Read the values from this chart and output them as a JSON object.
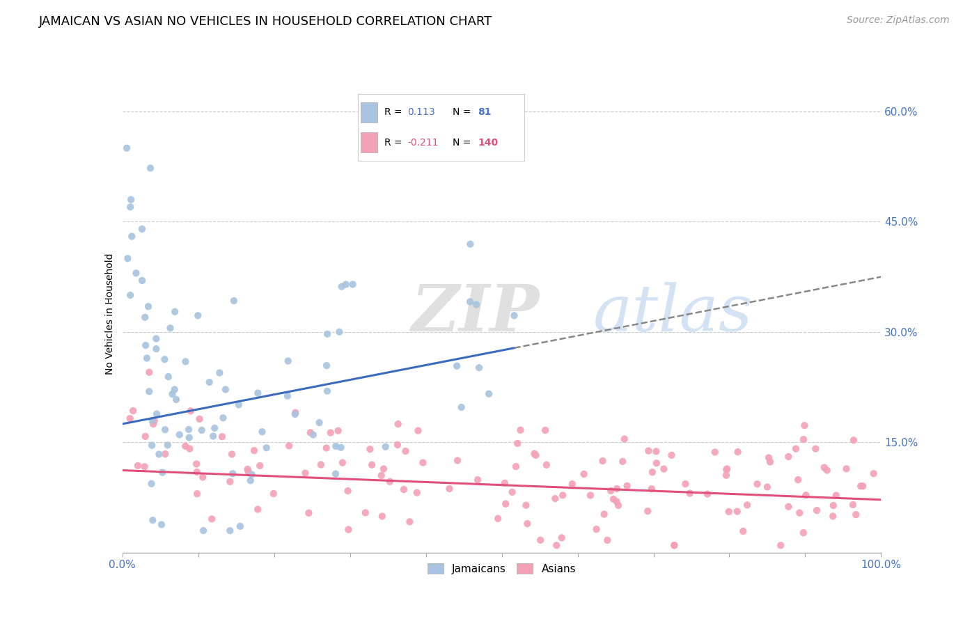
{
  "title": "JAMAICAN VS ASIAN NO VEHICLES IN HOUSEHOLD CORRELATION CHART",
  "source": "Source: ZipAtlas.com",
  "ylabel": "No Vehicles in Household",
  "xlim": [
    0.0,
    1.0
  ],
  "ylim": [
    0.0,
    0.65
  ],
  "y_ticks": [
    0.0,
    0.15,
    0.3,
    0.45,
    0.6
  ],
  "y_tick_labels": [
    "",
    "15.0%",
    "30.0%",
    "45.0%",
    "60.0%"
  ],
  "x_tick_labels": [
    "0.0%",
    "",
    "",
    "",
    "",
    "",
    "",
    "",
    "",
    "",
    "100.0%"
  ],
  "jamaicans_R": 0.113,
  "jamaicans_N": 81,
  "asians_R": -0.211,
  "asians_N": 140,
  "jamaican_color": "#a8c4e0",
  "asian_color": "#f4a0b5",
  "jamaican_line_color": "#3a6bbf",
  "asian_line_color": "#e0507a",
  "background_color": "#ffffff",
  "grid_color": "#cccccc",
  "watermark_zip": "ZIP",
  "watermark_atlas": "atlas",
  "title_fontsize": 13,
  "tick_fontsize": 11,
  "source_fontsize": 10
}
